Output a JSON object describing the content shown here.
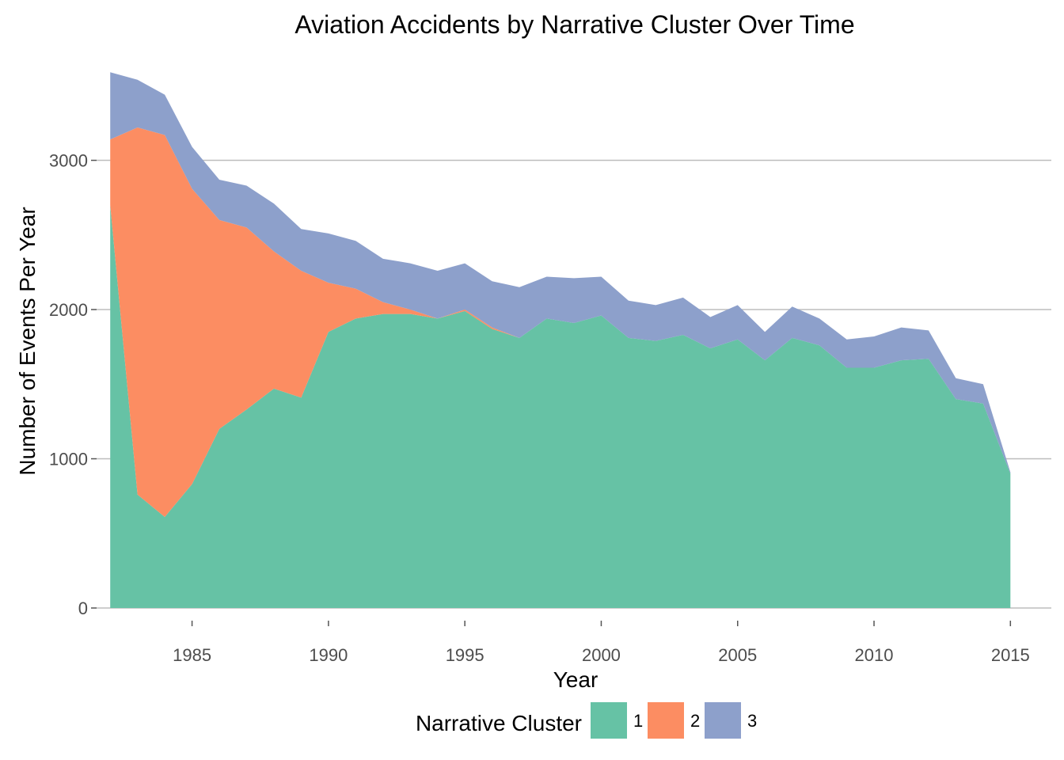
{
  "chart_data": {
    "type": "area",
    "stacked": true,
    "title": "Aviation Accidents by Narrative Cluster Over Time",
    "xlabel": "Year",
    "ylabel": "Number of Events Per Year",
    "xlim": [
      1981.5,
      2016.5
    ],
    "ylim": [
      0,
      3650
    ],
    "xticks": [
      1985,
      1990,
      1995,
      2000,
      2005,
      2010,
      2015
    ],
    "yticks": [
      0,
      1000,
      2000,
      3000
    ],
    "grid": "horizontal",
    "legend": {
      "title": "Narrative Cluster",
      "position": "bottom"
    },
    "x": [
      1982,
      1983,
      1984,
      1985,
      1986,
      1987,
      1988,
      1989,
      1990,
      1991,
      1992,
      1993,
      1994,
      1995,
      1996,
      1997,
      1998,
      1999,
      2000,
      2001,
      2002,
      2003,
      2004,
      2005,
      2006,
      2007,
      2008,
      2009,
      2010,
      2011,
      2012,
      2013,
      2014,
      2015
    ],
    "series": [
      {
        "name": "1",
        "color": "#66c2a5",
        "values": [
          2700,
          760,
          610,
          830,
          1200,
          1330,
          1470,
          1410,
          1850,
          1940,
          1970,
          1970,
          1940,
          1990,
          1870,
          1810,
          1940,
          1910,
          1960,
          1810,
          1790,
          1830,
          1740,
          1800,
          1660,
          1810,
          1760,
          1610,
          1610,
          1660,
          1670,
          1400,
          1370,
          900
        ]
      },
      {
        "name": "2",
        "color": "#fc8d62",
        "values": [
          440,
          2460,
          2560,
          1980,
          1400,
          1220,
          920,
          850,
          330,
          200,
          80,
          30,
          0,
          10,
          10,
          0,
          0,
          0,
          0,
          0,
          0,
          0,
          0,
          0,
          0,
          0,
          0,
          0,
          0,
          0,
          0,
          0,
          0,
          0
        ]
      },
      {
        "name": "3",
        "color": "#8da0cb",
        "values": [
          450,
          320,
          270,
          280,
          270,
          280,
          320,
          280,
          330,
          320,
          290,
          310,
          320,
          310,
          310,
          340,
          280,
          300,
          260,
          250,
          240,
          250,
          210,
          230,
          190,
          210,
          180,
          190,
          210,
          220,
          190,
          140,
          130,
          10
        ]
      }
    ]
  }
}
